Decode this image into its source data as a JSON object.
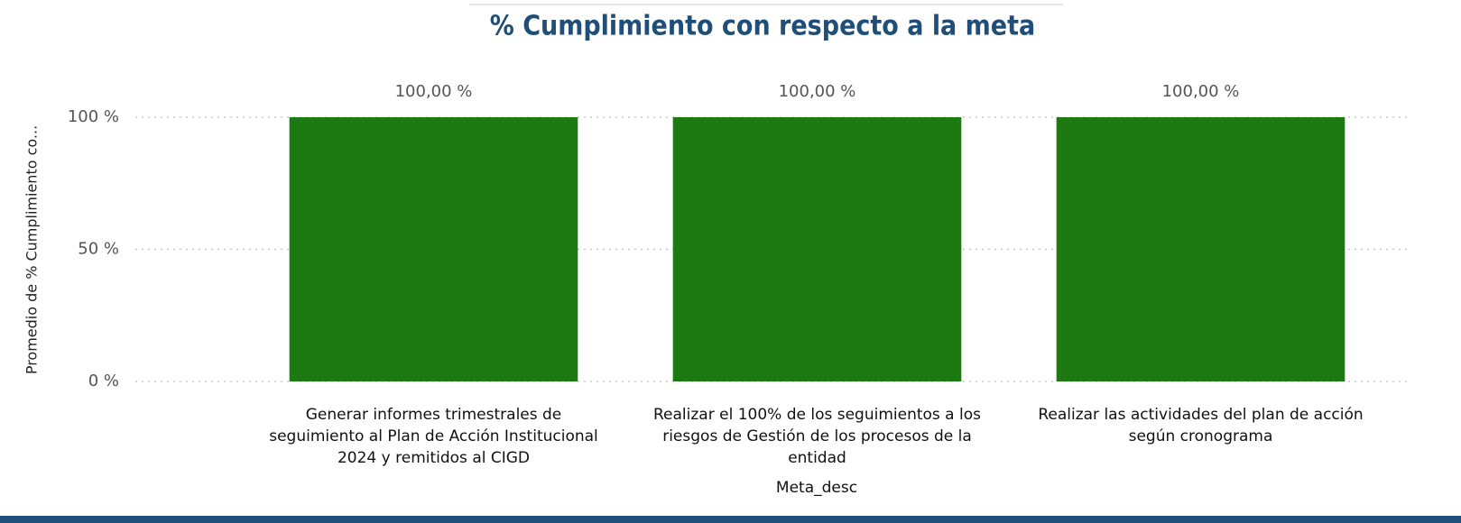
{
  "chart_data": {
    "type": "bar",
    "title": "% Cumplimiento con respecto a la meta",
    "y_label": "Promedio de % Cumplimiento co...",
    "x_label": "Meta_desc",
    "categories": [
      "Generar informes trimestrales de seguimiento al Plan de Acción Institucional 2024 y remitidos al CIGD",
      "Realizar el 100% de los seguimientos a los riesgos de Gestión de los procesos de la entidad",
      "Realizar las actividades del plan de acción según cronograma"
    ],
    "values": [
      100,
      100,
      100
    ],
    "value_labels": [
      "100,00 %",
      "100,00 %",
      "100,00 %"
    ],
    "color": "#1d7a13",
    "ylim": [
      0,
      100
    ],
    "yticks": [
      {
        "value": 0,
        "label": "0 %"
      },
      {
        "value": 50,
        "label": "50 %"
      },
      {
        "value": 100,
        "label": "100 %"
      }
    ],
    "grid": true
  }
}
